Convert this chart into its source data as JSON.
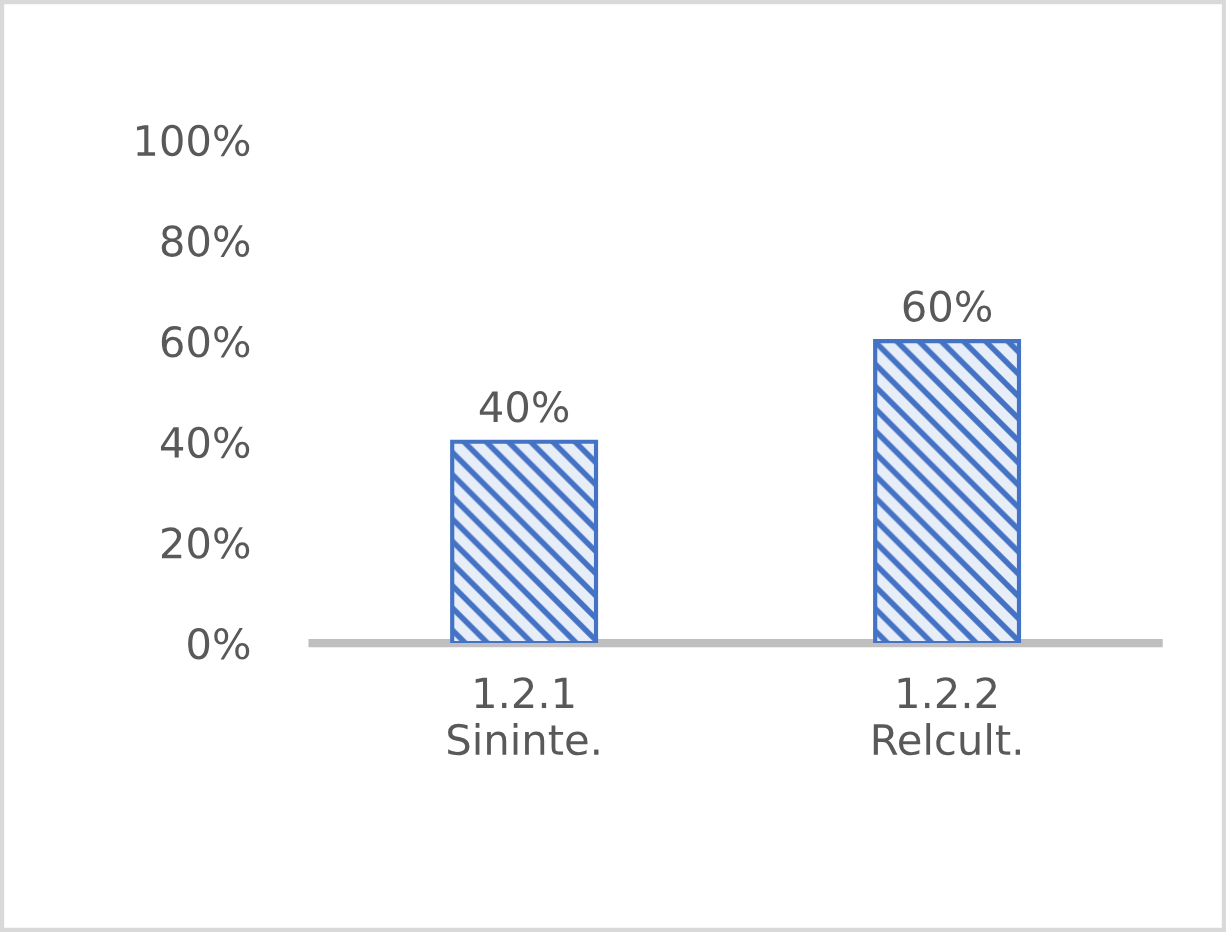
{
  "chart_data": {
    "type": "bar",
    "categories": [
      "1.2.1\nSininte.",
      "1.2.2\nRelcult."
    ],
    "values": [
      40,
      60
    ],
    "color": "#4472c4",
    "value_labels": [
      "40%",
      "60%"
    ],
    "ylim": [
      0,
      100
    ],
    "yticks": [
      {
        "value": 0,
        "label": "0%"
      },
      {
        "value": 20,
        "label": "20%"
      },
      {
        "value": 40,
        "label": "40%"
      },
      {
        "value": 60,
        "label": "60%"
      },
      {
        "value": 80,
        "label": "80%"
      },
      {
        "value": 100,
        "label": "100%"
      }
    ],
    "grid": false,
    "legend": false
  }
}
